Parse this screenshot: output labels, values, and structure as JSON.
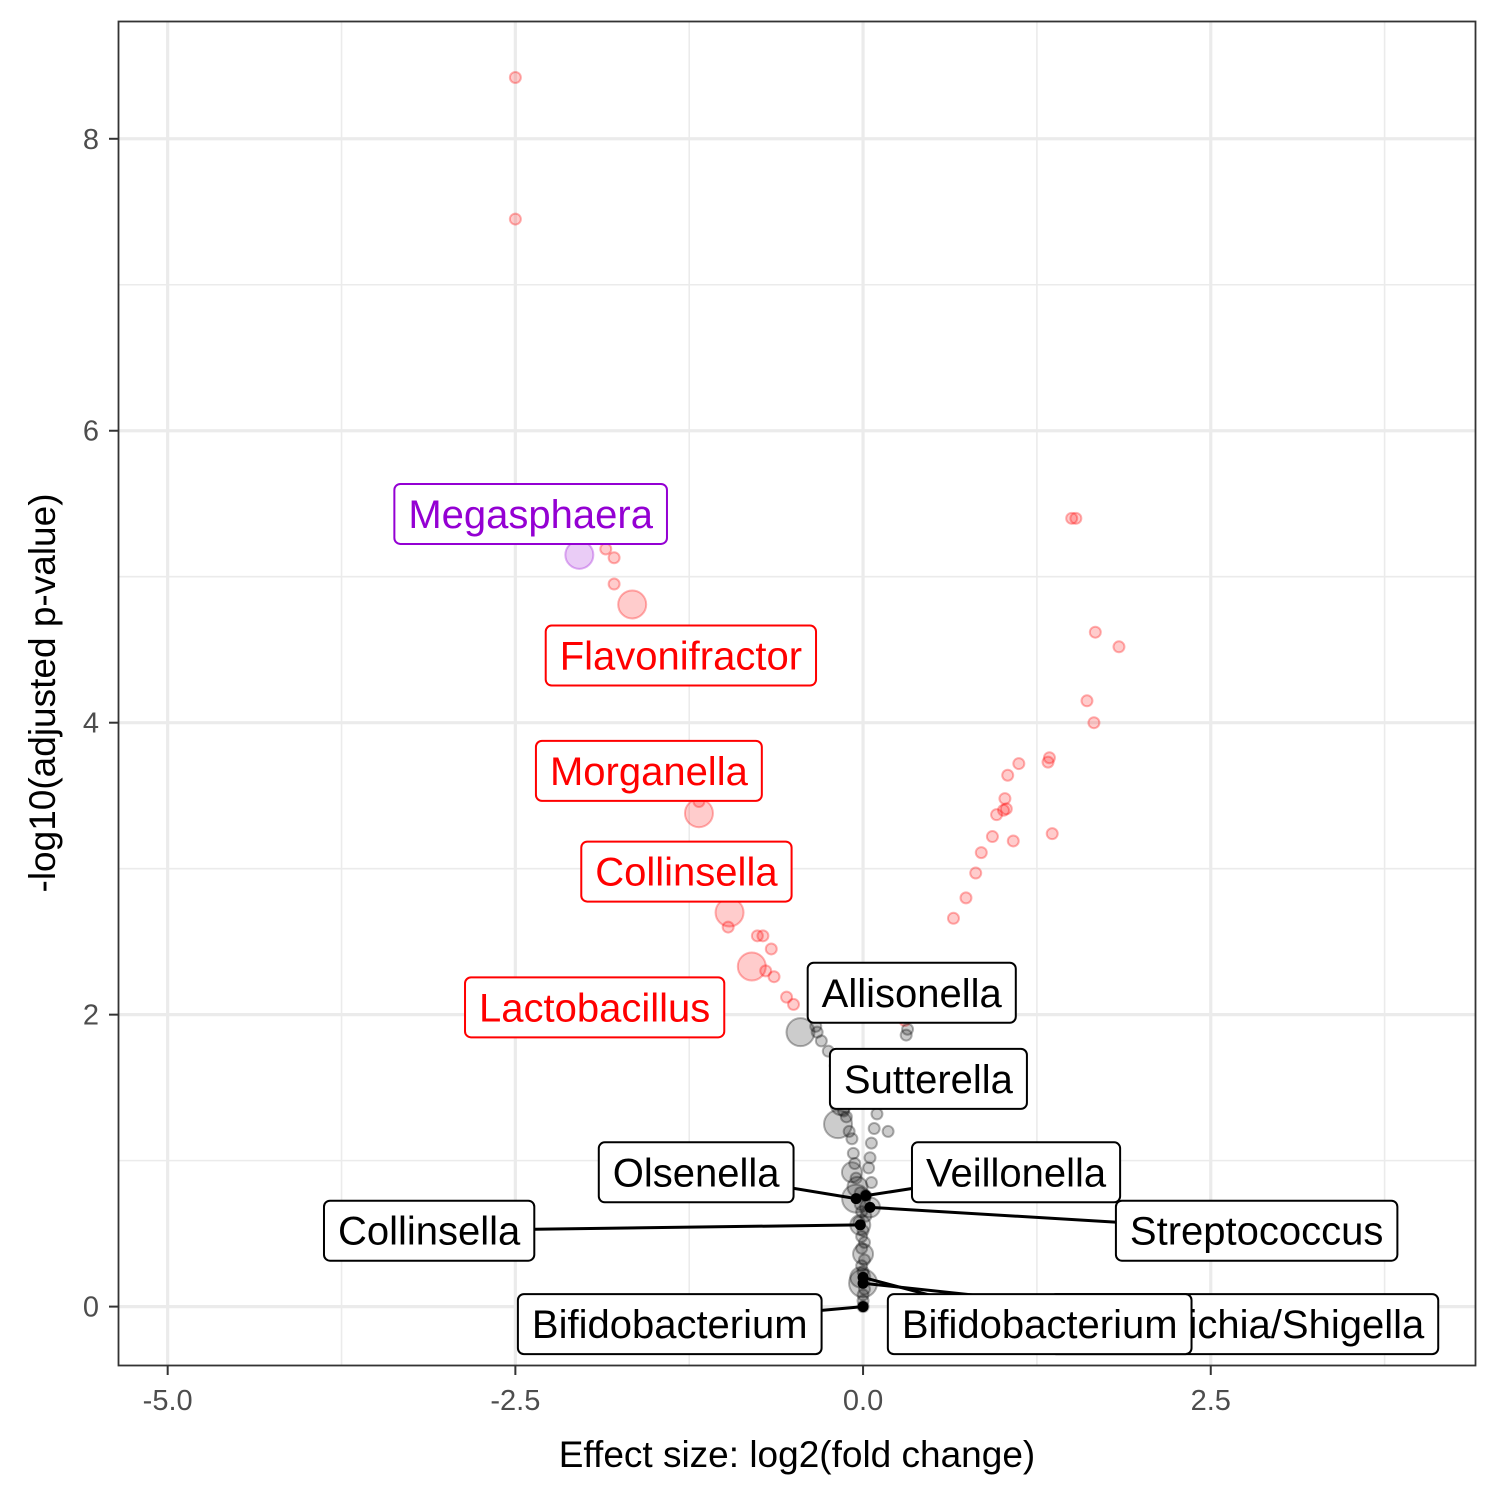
{
  "chart_data": {
    "type": "scatter",
    "title": "",
    "xlabel": "Effect size: log2(fold change)",
    "ylabel": "-log10(adjusted p-value)",
    "xlim": [
      -5.35,
      4.4
    ],
    "ylim": [
      -0.4,
      8.8
    ],
    "x_ticks": [
      {
        "value": -5.0,
        "label": "-5.0"
      },
      {
        "value": -2.5,
        "label": "-2.5"
      },
      {
        "value": 0.0,
        "label": "0.0"
      },
      {
        "value": 2.5,
        "label": "2.5"
      }
    ],
    "y_ticks": [
      {
        "value": 0,
        "label": "0"
      },
      {
        "value": 2,
        "label": "2"
      },
      {
        "value": 4,
        "label": "4"
      },
      {
        "value": 6,
        "label": "6"
      },
      {
        "value": 8,
        "label": "8"
      }
    ],
    "grid": true,
    "colors": {
      "significant": "#ff0000",
      "highlight": "#9400d3",
      "not_significant": "#000000"
    },
    "series": [
      {
        "group": "significant",
        "points": [
          {
            "x": -2.5,
            "y": 8.42,
            "s": 1
          },
          {
            "x": -2.5,
            "y": 7.45,
            "s": 1
          },
          {
            "x": -1.85,
            "y": 5.19,
            "s": 1
          },
          {
            "x": -1.79,
            "y": 5.13,
            "s": 1
          },
          {
            "x": -1.79,
            "y": 4.95,
            "s": 1
          },
          {
            "x": -1.66,
            "y": 4.81,
            "s": 3
          },
          {
            "x": -1.18,
            "y": 3.46,
            "s": 1
          },
          {
            "x": -1.18,
            "y": 3.38,
            "s": 3
          },
          {
            "x": -1.1,
            "y": 2.83,
            "s": 1
          },
          {
            "x": -0.96,
            "y": 2.7,
            "s": 3
          },
          {
            "x": -0.97,
            "y": 2.6,
            "s": 1
          },
          {
            "x": -0.72,
            "y": 2.54,
            "s": 1
          },
          {
            "x": -0.76,
            "y": 2.54,
            "s": 1
          },
          {
            "x": -0.66,
            "y": 2.45,
            "s": 1
          },
          {
            "x": -0.8,
            "y": 2.33,
            "s": 3
          },
          {
            "x": -0.7,
            "y": 2.3,
            "s": 1
          },
          {
            "x": -0.64,
            "y": 2.26,
            "s": 1
          },
          {
            "x": -0.55,
            "y": 2.12,
            "s": 1
          },
          {
            "x": -0.5,
            "y": 2.07,
            "s": 1
          },
          {
            "x": 1.5,
            "y": 5.4,
            "s": 1
          },
          {
            "x": 1.53,
            "y": 5.4,
            "s": 1
          },
          {
            "x": 1.67,
            "y": 4.62,
            "s": 1
          },
          {
            "x": 1.84,
            "y": 4.52,
            "s": 1
          },
          {
            "x": 1.61,
            "y": 4.15,
            "s": 1
          },
          {
            "x": 1.66,
            "y": 4.0,
            "s": 1
          },
          {
            "x": 1.34,
            "y": 3.76,
            "s": 1
          },
          {
            "x": 1.33,
            "y": 3.73,
            "s": 1
          },
          {
            "x": 1.12,
            "y": 3.72,
            "s": 1
          },
          {
            "x": 1.04,
            "y": 3.64,
            "s": 1
          },
          {
            "x": 1.02,
            "y": 3.48,
            "s": 1
          },
          {
            "x": 0.96,
            "y": 3.37,
            "s": 1
          },
          {
            "x": 1.01,
            "y": 3.4,
            "s": 1
          },
          {
            "x": 1.03,
            "y": 3.41,
            "s": 1
          },
          {
            "x": 0.93,
            "y": 3.22,
            "s": 1
          },
          {
            "x": 1.08,
            "y": 3.19,
            "s": 1
          },
          {
            "x": 1.36,
            "y": 3.24,
            "s": 1
          },
          {
            "x": 0.85,
            "y": 3.11,
            "s": 1
          },
          {
            "x": 0.81,
            "y": 2.97,
            "s": 1
          },
          {
            "x": 0.74,
            "y": 2.8,
            "s": 1
          },
          {
            "x": 0.65,
            "y": 2.66,
            "s": 1
          },
          {
            "x": 0.31,
            "y": 1.99,
            "s": 1
          },
          {
            "x": 0.3,
            "y": 1.96,
            "s": 1
          }
        ]
      },
      {
        "group": "highlight",
        "points": [
          {
            "x": -2.04,
            "y": 5.15,
            "s": 3
          }
        ]
      },
      {
        "group": "not_significant",
        "points": [
          {
            "x": -0.45,
            "y": 1.88,
            "s": 3
          },
          {
            "x": -0.34,
            "y": 1.92,
            "s": 1
          },
          {
            "x": -0.33,
            "y": 1.88,
            "s": 1
          },
          {
            "x": -0.3,
            "y": 1.82,
            "s": 1
          },
          {
            "x": -0.25,
            "y": 1.75,
            "s": 1
          },
          {
            "x": 0.32,
            "y": 1.9,
            "s": 1
          },
          {
            "x": 0.31,
            "y": 1.86,
            "s": 1
          },
          {
            "x": -0.2,
            "y": 1.65,
            "s": 1
          },
          {
            "x": -0.17,
            "y": 1.55,
            "s": 1
          },
          {
            "x": -0.15,
            "y": 1.45,
            "s": 1
          },
          {
            "x": -0.16,
            "y": 1.38,
            "s": 2
          },
          {
            "x": -0.14,
            "y": 1.34,
            "s": 1
          },
          {
            "x": -0.12,
            "y": 1.3,
            "s": 1
          },
          {
            "x": 0.1,
            "y": 1.32,
            "s": 1
          },
          {
            "x": -0.18,
            "y": 1.25,
            "s": 3
          },
          {
            "x": -0.1,
            "y": 1.2,
            "s": 1
          },
          {
            "x": 0.08,
            "y": 1.22,
            "s": 1
          },
          {
            "x": 0.18,
            "y": 1.2,
            "s": 1
          },
          {
            "x": -0.08,
            "y": 1.15,
            "s": 1
          },
          {
            "x": 0.06,
            "y": 1.12,
            "s": 1
          },
          {
            "x": -0.07,
            "y": 1.05,
            "s": 1
          },
          {
            "x": 0.05,
            "y": 1.02,
            "s": 1
          },
          {
            "x": -0.06,
            "y": 0.98,
            "s": 1
          },
          {
            "x": 0.04,
            "y": 0.95,
            "s": 1
          },
          {
            "x": -0.08,
            "y": 0.92,
            "s": 2
          },
          {
            "x": -0.05,
            "y": 0.88,
            "s": 1
          },
          {
            "x": 0.06,
            "y": 0.85,
            "s": 1
          },
          {
            "x": -0.04,
            "y": 0.82,
            "s": 2
          },
          {
            "x": -0.02,
            "y": 0.78,
            "s": 1
          },
          {
            "x": 0.02,
            "y": 0.76,
            "s": 1
          },
          {
            "x": -0.05,
            "y": 0.74,
            "s": 3
          },
          {
            "x": -0.02,
            "y": 0.7,
            "s": 1
          },
          {
            "x": 0.05,
            "y": 0.68,
            "s": 2
          },
          {
            "x": -0.01,
            "y": 0.65,
            "s": 1
          },
          {
            "x": 0.02,
            "y": 0.62,
            "s": 1
          },
          {
            "x": -0.03,
            "y": 0.58,
            "s": 1
          },
          {
            "x": -0.02,
            "y": 0.56,
            "s": 2
          },
          {
            "x": 0.0,
            "y": 0.52,
            "s": 1
          },
          {
            "x": -0.01,
            "y": 0.48,
            "s": 1
          },
          {
            "x": 0.01,
            "y": 0.44,
            "s": 1
          },
          {
            "x": -0.01,
            "y": 0.4,
            "s": 1
          },
          {
            "x": 0.0,
            "y": 0.36,
            "s": 2
          },
          {
            "x": 0.01,
            "y": 0.32,
            "s": 1
          },
          {
            "x": -0.01,
            "y": 0.28,
            "s": 1
          },
          {
            "x": 0.0,
            "y": 0.24,
            "s": 1
          },
          {
            "x": -0.02,
            "y": 0.2,
            "s": 2
          },
          {
            "x": 0.0,
            "y": 0.16,
            "s": 3
          },
          {
            "x": 0.01,
            "y": 0.12,
            "s": 1
          },
          {
            "x": 0.0,
            "y": 0.08,
            "s": 1
          },
          {
            "x": 0.0,
            "y": 0.04,
            "s": 1
          },
          {
            "x": 0.0,
            "y": 0.0,
            "s": 1
          }
        ]
      }
    ],
    "labels": [
      {
        "text": "Megasphaera",
        "x": -2.04,
        "y": 5.15,
        "group": "highlight",
        "lx": -2.39,
        "ly": 5.43,
        "segment": false
      },
      {
        "text": "Flavonifractor",
        "x": -1.66,
        "y": 4.81,
        "group": "significant",
        "lx": -1.31,
        "ly": 4.46,
        "segment": false
      },
      {
        "text": "Morganella",
        "x": -1.18,
        "y": 3.38,
        "group": "significant",
        "lx": -1.54,
        "ly": 3.67,
        "segment": false
      },
      {
        "text": "Collinsella",
        "x": -0.96,
        "y": 2.7,
        "group": "significant",
        "lx": -1.27,
        "ly": 2.98,
        "segment": false
      },
      {
        "text": "Lactobacillus",
        "x": -0.8,
        "y": 2.33,
        "group": "significant",
        "lx": -1.93,
        "ly": 2.05,
        "segment": false
      },
      {
        "text": "Allisonella",
        "x": -0.45,
        "y": 1.88,
        "group": "not_significant",
        "lx": 0.35,
        "ly": 2.15,
        "segment": false
      },
      {
        "text": "Sutterella",
        "x": -0.18,
        "y": 1.25,
        "group": "not_significant",
        "lx": 0.47,
        "ly": 1.56,
        "segment": false
      },
      {
        "text": "Olsenella",
        "x": -0.05,
        "y": 0.74,
        "group": "not_significant",
        "lx": -1.2,
        "ly": 0.92,
        "segment": true
      },
      {
        "text": "Veillonella",
        "x": 0.02,
        "y": 0.76,
        "group": "not_significant",
        "lx": 1.1,
        "ly": 0.92,
        "segment": true
      },
      {
        "text": "Collinsella",
        "x": -0.02,
        "y": 0.56,
        "group": "not_significant",
        "lx": -3.12,
        "ly": 0.52,
        "segment": true
      },
      {
        "text": "Streptococcus",
        "x": 0.05,
        "y": 0.68,
        "group": "not_significant",
        "lx": 2.83,
        "ly": 0.52,
        "segment": true
      },
      {
        "text": "Bifidobacterium",
        "x": 0.0,
        "y": 0.0,
        "group": "not_significant",
        "lx": -1.39,
        "ly": -0.12,
        "segment": true
      },
      {
        "text": "Escherichia/Shigella",
        "x": 0.0,
        "y": 0.16,
        "group": "not_significant",
        "lx": 2.74,
        "ly": -0.12,
        "segment": true
      },
      {
        "text": "Bifidobacterium",
        "x": 0.0,
        "y": 0.2,
        "group": "not_significant",
        "lx": 1.27,
        "ly": -0.12,
        "segment": true
      }
    ]
  }
}
